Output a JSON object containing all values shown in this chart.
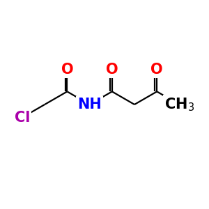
{
  "background_color": "#ffffff",
  "bond_color": "#000000",
  "cl_color": "#aa00aa",
  "o_color": "#ff0000",
  "n_color": "#0000ff",
  "c_color": "#000000",
  "figsize": [
    3.0,
    3.0
  ],
  "dpi": 100,
  "xlim": [
    0,
    10
  ],
  "ylim": [
    0,
    10
  ],
  "bond_lw": 1.6,
  "font_size_atom": 15,
  "font_size_sub": 11
}
